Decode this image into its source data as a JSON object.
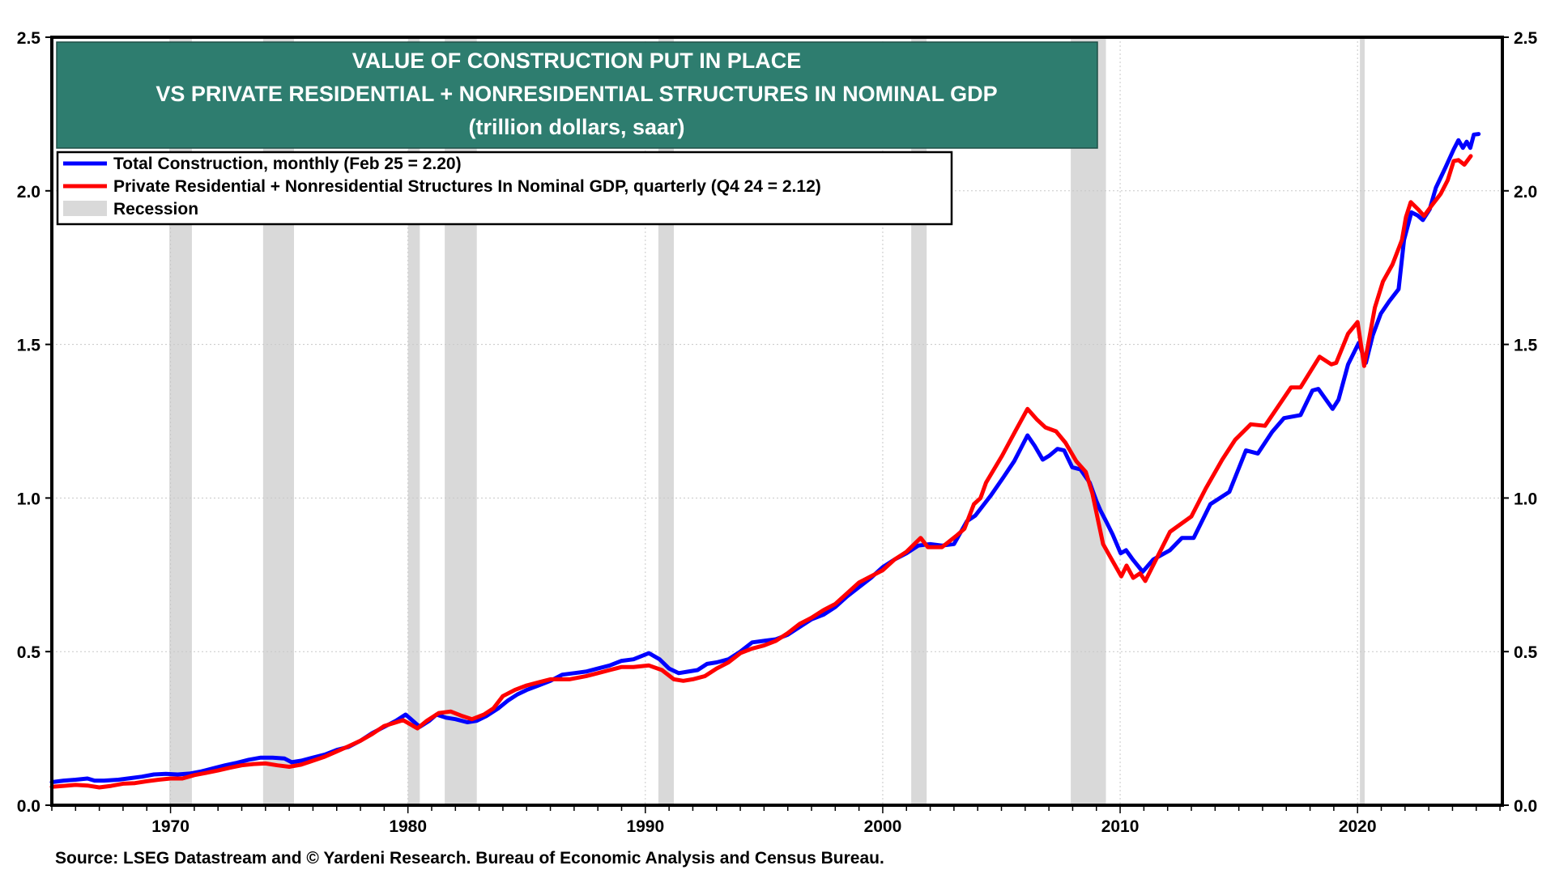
{
  "chart_data": {
    "type": "line",
    "title": [
      "VALUE OF CONSTRUCTION PUT IN PLACE",
      "VS PRIVATE RESIDENTIAL + NONRESIDENTIAL STRUCTURES  IN NOMINAL GDP",
      "(trillion dollars, saar)"
    ],
    "xlabel": "",
    "ylabel": "",
    "xlim": [
      1965,
      2026.1
    ],
    "ylim": [
      0,
      2.5
    ],
    "y_ticks": [
      0.0,
      0.5,
      1.0,
      1.5,
      2.0,
      2.5
    ],
    "y_tick_labels": [
      "0.0",
      "0.5",
      "1.0",
      "1.5",
      "2.0",
      "2.5"
    ],
    "x_ticks": [
      1970,
      1980,
      1990,
      2000,
      2010,
      2020
    ],
    "x_tick_labels": [
      "1970",
      "1980",
      "1990",
      "2000",
      "2010",
      "2020"
    ],
    "x_minor_ticks_every": 1,
    "grid": true,
    "dual_y_axis": true,
    "legend_placement": "top-left",
    "colors": {
      "title_box": "#2e7d6f",
      "total_construction": "#0000ff",
      "private_structures": "#ff0000",
      "recession": "#d9d9d9",
      "grid": "#c8c8c8"
    },
    "legend": [
      {
        "label": "Total Construction, monthly (Feb 25 = 2.20)",
        "type": "line",
        "color": "#0000ff"
      },
      {
        "label": "Private Residential + Nonresidential Structures In Nominal GDP, quarterly (Q4 24 = 2.12)",
        "type": "line",
        "color": "#ff0000"
      },
      {
        "label": "Recession",
        "type": "area",
        "color": "#d9d9d9"
      }
    ],
    "recessions": [
      [
        1969.95,
        1970.9
      ],
      [
        1973.9,
        1975.2
      ],
      [
        1980.0,
        1980.5
      ],
      [
        1981.55,
        1982.9
      ],
      [
        1990.55,
        1991.2
      ],
      [
        2001.2,
        2001.85
      ],
      [
        2007.92,
        2009.4
      ],
      [
        2020.1,
        2020.3
      ]
    ],
    "series": [
      {
        "name": "Total Construction, monthly",
        "color": "#0000ff",
        "points": [
          [
            1965.0,
            0.075
          ],
          [
            1965.5,
            0.08
          ],
          [
            1966.0,
            0.083
          ],
          [
            1966.5,
            0.087
          ],
          [
            1966.8,
            0.08
          ],
          [
            1967.2,
            0.08
          ],
          [
            1967.8,
            0.083
          ],
          [
            1968.3,
            0.088
          ],
          [
            1968.8,
            0.093
          ],
          [
            1969.3,
            0.1
          ],
          [
            1969.8,
            0.102
          ],
          [
            1970.3,
            0.1
          ],
          [
            1970.8,
            0.103
          ],
          [
            1971.3,
            0.11
          ],
          [
            1971.8,
            0.12
          ],
          [
            1972.3,
            0.13
          ],
          [
            1972.8,
            0.138
          ],
          [
            1973.3,
            0.148
          ],
          [
            1973.8,
            0.155
          ],
          [
            1974.3,
            0.155
          ],
          [
            1974.8,
            0.152
          ],
          [
            1975.1,
            0.14
          ],
          [
            1975.5,
            0.145
          ],
          [
            1976.0,
            0.155
          ],
          [
            1976.5,
            0.165
          ],
          [
            1977.0,
            0.18
          ],
          [
            1977.5,
            0.19
          ],
          [
            1978.0,
            0.21
          ],
          [
            1978.5,
            0.235
          ],
          [
            1979.0,
            0.255
          ],
          [
            1979.5,
            0.275
          ],
          [
            1979.9,
            0.295
          ],
          [
            1980.2,
            0.275
          ],
          [
            1980.5,
            0.255
          ],
          [
            1980.9,
            0.275
          ],
          [
            1981.2,
            0.295
          ],
          [
            1981.6,
            0.285
          ],
          [
            1982.0,
            0.28
          ],
          [
            1982.5,
            0.27
          ],
          [
            1982.9,
            0.275
          ],
          [
            1983.3,
            0.29
          ],
          [
            1983.8,
            0.315
          ],
          [
            1984.2,
            0.34
          ],
          [
            1984.6,
            0.36
          ],
          [
            1985.0,
            0.375
          ],
          [
            1985.5,
            0.39
          ],
          [
            1986.0,
            0.405
          ],
          [
            1986.5,
            0.425
          ],
          [
            1987.0,
            0.43
          ],
          [
            1987.5,
            0.435
          ],
          [
            1988.0,
            0.445
          ],
          [
            1988.5,
            0.455
          ],
          [
            1989.0,
            0.47
          ],
          [
            1989.5,
            0.475
          ],
          [
            1990.15,
            0.495
          ],
          [
            1990.6,
            0.475
          ],
          [
            1991.0,
            0.445
          ],
          [
            1991.4,
            0.43
          ],
          [
            1991.8,
            0.435
          ],
          [
            1992.2,
            0.44
          ],
          [
            1992.6,
            0.46
          ],
          [
            1993.0,
            0.465
          ],
          [
            1993.5,
            0.475
          ],
          [
            1994.0,
            0.5
          ],
          [
            1994.5,
            0.53
          ],
          [
            1995.0,
            0.535
          ],
          [
            1995.5,
            0.54
          ],
          [
            1996.0,
            0.555
          ],
          [
            1996.5,
            0.58
          ],
          [
            1997.0,
            0.605
          ],
          [
            1997.5,
            0.62
          ],
          [
            1998.0,
            0.645
          ],
          [
            1998.5,
            0.68
          ],
          [
            1999.0,
            0.71
          ],
          [
            1999.5,
            0.74
          ],
          [
            2000.0,
            0.775
          ],
          [
            2000.5,
            0.8
          ],
          [
            2001.0,
            0.82
          ],
          [
            2001.5,
            0.845
          ],
          [
            2002.0,
            0.85
          ],
          [
            2002.5,
            0.845
          ],
          [
            2003.0,
            0.85
          ],
          [
            2003.55,
            0.925
          ],
          [
            2003.9,
            0.943
          ],
          [
            2004.57,
            1.01
          ],
          [
            2005.08,
            1.067
          ],
          [
            2005.54,
            1.12
          ],
          [
            2006.1,
            1.204
          ],
          [
            2006.4,
            1.17
          ],
          [
            2006.74,
            1.125
          ],
          [
            2007.02,
            1.138
          ],
          [
            2007.36,
            1.16
          ],
          [
            2007.64,
            1.155
          ],
          [
            2007.98,
            1.1
          ],
          [
            2008.33,
            1.093
          ],
          [
            2008.72,
            1.05
          ],
          [
            2009.0,
            0.99
          ],
          [
            2009.17,
            0.96
          ],
          [
            2009.45,
            0.918
          ],
          [
            2009.68,
            0.882
          ],
          [
            2010.02,
            0.82
          ],
          [
            2010.25,
            0.83
          ],
          [
            2010.53,
            0.8
          ],
          [
            2010.95,
            0.76
          ],
          [
            2011.4,
            0.8
          ],
          [
            2012.1,
            0.83
          ],
          [
            2012.6,
            0.87
          ],
          [
            2013.1,
            0.87
          ],
          [
            2013.8,
            0.98
          ],
          [
            2014.6,
            1.02
          ],
          [
            2015.3,
            1.155
          ],
          [
            2015.8,
            1.145
          ],
          [
            2016.4,
            1.215
          ],
          [
            2016.9,
            1.26
          ],
          [
            2017.6,
            1.27
          ],
          [
            2018.1,
            1.35
          ],
          [
            2018.35,
            1.355
          ],
          [
            2018.95,
            1.29
          ],
          [
            2019.2,
            1.32
          ],
          [
            2019.6,
            1.435
          ],
          [
            2020.05,
            1.505
          ],
          [
            2020.35,
            1.44
          ],
          [
            2020.64,
            1.53
          ],
          [
            2020.98,
            1.6
          ],
          [
            2021.33,
            1.64
          ],
          [
            2021.73,
            1.68
          ],
          [
            2021.96,
            1.84
          ],
          [
            2022.27,
            1.93
          ],
          [
            2022.53,
            1.92
          ],
          [
            2022.75,
            1.905
          ],
          [
            2023.04,
            1.94
          ],
          [
            2023.3,
            2.01
          ],
          [
            2023.7,
            2.075
          ],
          [
            2024.05,
            2.135
          ],
          [
            2024.25,
            2.165
          ],
          [
            2024.44,
            2.14
          ],
          [
            2024.6,
            2.16
          ],
          [
            2024.75,
            2.14
          ],
          [
            2024.9,
            2.183
          ],
          [
            2025.1,
            2.185
          ]
        ]
      },
      {
        "name": "Private Residential + Nonresidential Structures In Nominal GDP, quarterly",
        "color": "#ff0000",
        "points": [
          [
            1965.0,
            0.06
          ],
          [
            1965.5,
            0.063
          ],
          [
            1966.0,
            0.066
          ],
          [
            1966.5,
            0.064
          ],
          [
            1967.0,
            0.058
          ],
          [
            1967.5,
            0.063
          ],
          [
            1968.0,
            0.07
          ],
          [
            1968.5,
            0.072
          ],
          [
            1969.0,
            0.078
          ],
          [
            1969.5,
            0.083
          ],
          [
            1970.0,
            0.087
          ],
          [
            1970.5,
            0.087
          ],
          [
            1971.0,
            0.098
          ],
          [
            1971.5,
            0.105
          ],
          [
            1972.0,
            0.113
          ],
          [
            1972.5,
            0.122
          ],
          [
            1973.0,
            0.13
          ],
          [
            1973.5,
            0.134
          ],
          [
            1974.0,
            0.136
          ],
          [
            1974.5,
            0.13
          ],
          [
            1975.0,
            0.125
          ],
          [
            1975.5,
            0.132
          ],
          [
            1976.0,
            0.145
          ],
          [
            1976.5,
            0.158
          ],
          [
            1977.0,
            0.175
          ],
          [
            1977.5,
            0.192
          ],
          [
            1978.0,
            0.21
          ],
          [
            1978.5,
            0.232
          ],
          [
            1979.0,
            0.258
          ],
          [
            1979.8,
            0.277
          ],
          [
            1980.4,
            0.25
          ],
          [
            1980.8,
            0.275
          ],
          [
            1981.3,
            0.3
          ],
          [
            1981.8,
            0.305
          ],
          [
            1982.3,
            0.29
          ],
          [
            1982.7,
            0.28
          ],
          [
            1983.2,
            0.295
          ],
          [
            1983.6,
            0.315
          ],
          [
            1984.0,
            0.355
          ],
          [
            1984.5,
            0.375
          ],
          [
            1985.0,
            0.39
          ],
          [
            1985.5,
            0.4
          ],
          [
            1986.0,
            0.41
          ],
          [
            1986.8,
            0.41
          ],
          [
            1987.5,
            0.42
          ],
          [
            1988.0,
            0.43
          ],
          [
            1988.5,
            0.44
          ],
          [
            1989.0,
            0.45
          ],
          [
            1989.5,
            0.45
          ],
          [
            1990.15,
            0.455
          ],
          [
            1990.7,
            0.44
          ],
          [
            1991.2,
            0.41
          ],
          [
            1991.6,
            0.405
          ],
          [
            1992.0,
            0.41
          ],
          [
            1992.5,
            0.42
          ],
          [
            1993.0,
            0.445
          ],
          [
            1993.5,
            0.465
          ],
          [
            1994.0,
            0.495
          ],
          [
            1994.5,
            0.51
          ],
          [
            1995.0,
            0.52
          ],
          [
            1995.5,
            0.535
          ],
          [
            1996.0,
            0.56
          ],
          [
            1996.5,
            0.59
          ],
          [
            1997.0,
            0.61
          ],
          [
            1997.5,
            0.635
          ],
          [
            1998.0,
            0.655
          ],
          [
            1998.5,
            0.69
          ],
          [
            1999.0,
            0.725
          ],
          [
            1999.5,
            0.745
          ],
          [
            2000.0,
            0.765
          ],
          [
            2000.5,
            0.8
          ],
          [
            2001.0,
            0.825
          ],
          [
            2001.6,
            0.87
          ],
          [
            2001.9,
            0.84
          ],
          [
            2002.5,
            0.84
          ],
          [
            2003.1,
            0.877
          ],
          [
            2003.44,
            0.9
          ],
          [
            2003.84,
            0.98
          ],
          [
            2004.12,
            1.0
          ],
          [
            2004.35,
            1.05
          ],
          [
            2005.03,
            1.138
          ],
          [
            2005.6,
            1.22
          ],
          [
            2006.1,
            1.29
          ],
          [
            2006.5,
            1.255
          ],
          [
            2006.85,
            1.23
          ],
          [
            2007.3,
            1.217
          ],
          [
            2007.7,
            1.18
          ],
          [
            2008.15,
            1.12
          ],
          [
            2008.55,
            1.085
          ],
          [
            2008.83,
            1.015
          ],
          [
            2009.28,
            0.85
          ],
          [
            2009.68,
            0.795
          ],
          [
            2010.05,
            0.745
          ],
          [
            2010.27,
            0.78
          ],
          [
            2010.55,
            0.74
          ],
          [
            2010.84,
            0.755
          ],
          [
            2011.06,
            0.73
          ],
          [
            2012.1,
            0.89
          ],
          [
            2013.0,
            0.94
          ],
          [
            2013.6,
            1.03
          ],
          [
            2014.3,
            1.125
          ],
          [
            2014.85,
            1.19
          ],
          [
            2015.5,
            1.24
          ],
          [
            2016.1,
            1.235
          ],
          [
            2017.2,
            1.36
          ],
          [
            2017.6,
            1.36
          ],
          [
            2018.4,
            1.46
          ],
          [
            2018.9,
            1.435
          ],
          [
            2019.1,
            1.44
          ],
          [
            2019.6,
            1.535
          ],
          [
            2020.0,
            1.573
          ],
          [
            2020.28,
            1.43
          ],
          [
            2020.73,
            1.62
          ],
          [
            2021.07,
            1.705
          ],
          [
            2021.47,
            1.76
          ],
          [
            2021.87,
            1.84
          ],
          [
            2022.04,
            1.915
          ],
          [
            2022.24,
            1.963
          ],
          [
            2022.55,
            1.94
          ],
          [
            2022.8,
            1.918
          ],
          [
            2023.1,
            1.95
          ],
          [
            2023.5,
            1.99
          ],
          [
            2023.8,
            2.035
          ],
          [
            2024.05,
            2.097
          ],
          [
            2024.25,
            2.1
          ],
          [
            2024.5,
            2.085
          ],
          [
            2024.77,
            2.113
          ]
        ]
      }
    ]
  },
  "source": "Source: LSEG Datastream and © Yardeni Research. Bureau of Economic Analysis and Census Bureau."
}
